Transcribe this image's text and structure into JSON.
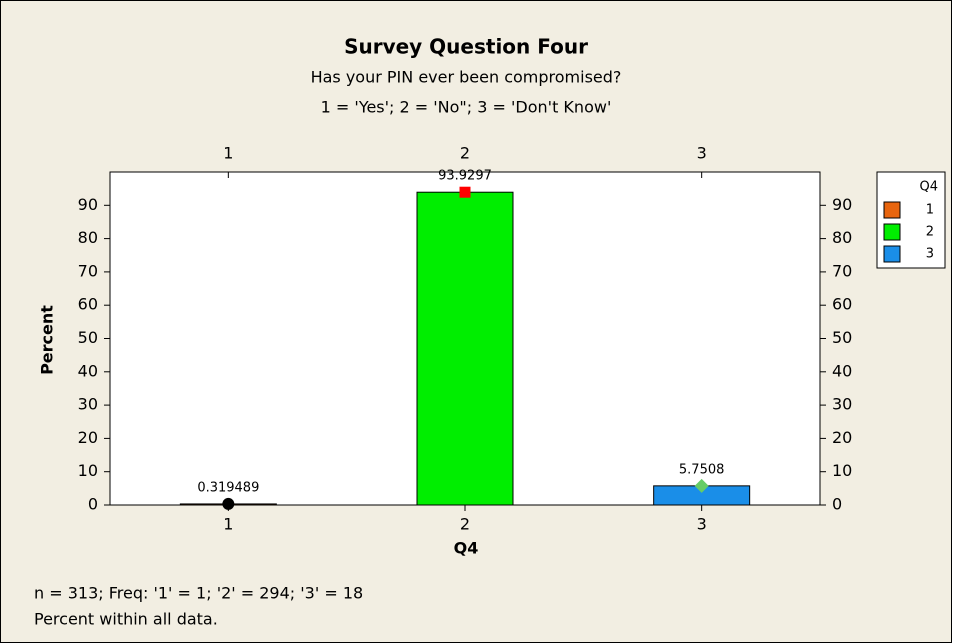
{
  "chart_data": {
    "type": "bar",
    "title": "Survey Question Four",
    "subtitle": [
      "Has your PIN ever been compromised?",
      "1 = 'Yes'; 2 = 'No\"; 3 = 'Don't Know'"
    ],
    "x_label": "Q4",
    "y_label": "Percent",
    "categories": [
      "1",
      "2",
      "3"
    ],
    "values": [
      0.319489,
      93.9297,
      5.7508
    ],
    "colors": [
      "#e8650e",
      "#00ee00",
      "#1a8ee8"
    ],
    "markers": [
      "circle",
      "square",
      "diamond"
    ],
    "marker_colors": [
      "#000000",
      "#ff0000",
      "#66cc66"
    ],
    "ylim": [
      0,
      100
    ],
    "yticks": [
      0,
      10,
      20,
      30,
      40,
      50,
      60,
      70,
      80,
      90
    ],
    "legend_title": "Q4",
    "footnotes": [
      "n = 313; Freq: '1' = 1; '2' = 294; '3' = 18",
      "Percent within all data."
    ]
  }
}
